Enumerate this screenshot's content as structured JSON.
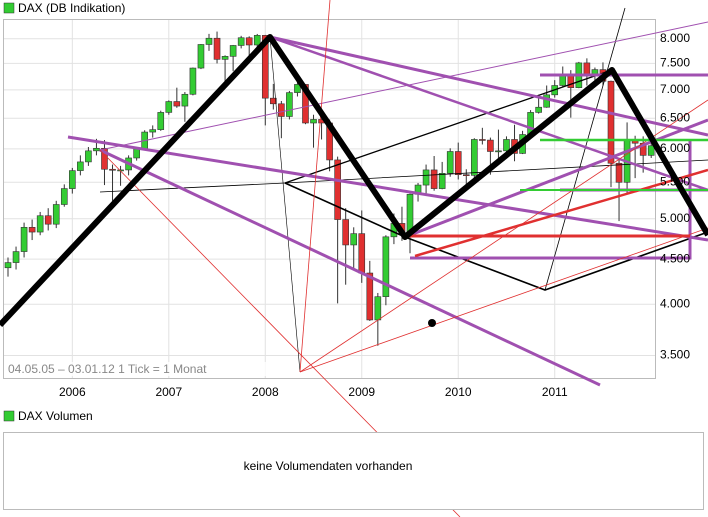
{
  "chart_data": {
    "type": "candlestick",
    "title": "DAX (DB Indikation)",
    "footnote": "04.05.05 – 03.01.12   1 Tick = 1 Monat",
    "categories": [
      null,
      null,
      null,
      null,
      null,
      null,
      null,
      null,
      "2006",
      null,
      null,
      null,
      null,
      null,
      null,
      null,
      null,
      null,
      null,
      null,
      "2007",
      null,
      null,
      null,
      null,
      null,
      null,
      null,
      null,
      null,
      null,
      null,
      "2008",
      null,
      null,
      null,
      null,
      null,
      null,
      null,
      null,
      null,
      null,
      null,
      "2009",
      null,
      null,
      null,
      null,
      null,
      null,
      null,
      null,
      null,
      null,
      null,
      "2010",
      null,
      null,
      null,
      null,
      null,
      null,
      null,
      null,
      null,
      null,
      null,
      "2011",
      null,
      null,
      null,
      null,
      null,
      null,
      null,
      null,
      null,
      null,
      null,
      null
    ],
    "open": [
      4400,
      4460,
      4590,
      4890,
      4830,
      5040,
      4930,
      5190,
      5410,
      5670,
      5800,
      5970,
      6010,
      5690,
      5680,
      5680,
      5860,
      6000,
      6270,
      6310,
      6600,
      6790,
      6710,
      6920,
      7410,
      7880,
      8010,
      7580,
      7640,
      7860,
      8020,
      7870,
      8070,
      6850,
      6750,
      6530,
      6950,
      7100,
      6420,
      6480,
      6420,
      5830,
      4990,
      4670,
      4810,
      4340,
      3840,
      4080,
      4770,
      4940,
      4810,
      5330,
      5460,
      5680,
      5410,
      5630,
      5960,
      5610,
      5600,
      6150,
      6140,
      5960,
      5970,
      6150,
      5930,
      6230,
      6600,
      6690,
      6910,
      7080,
      7270,
      7040,
      7510,
      7290,
      7380,
      7160,
      5780,
      5500,
      6140,
      6090,
      5900
    ],
    "high": [
      4520,
      4650,
      4950,
      4990,
      5090,
      5140,
      5240,
      5470,
      5710,
      5900,
      6030,
      6160,
      6140,
      5760,
      5740,
      5900,
      6030,
      6300,
      6380,
      6630,
      6810,
      7040,
      6960,
      7420,
      7890,
      8100,
      8150,
      7660,
      7870,
      8060,
      8050,
      8100,
      8080,
      7110,
      6800,
      6980,
      7230,
      7100,
      6560,
      6500,
      6480,
      5880,
      5140,
      4890,
      5110,
      4480,
      4120,
      4790,
      5070,
      5160,
      5340,
      5490,
      5760,
      5890,
      5800,
      6010,
      6100,
      5690,
      6170,
      6340,
      6180,
      6310,
      6200,
      6390,
      6290,
      6640,
      6910,
      7080,
      7180,
      7440,
      7370,
      7530,
      7600,
      7420,
      7520,
      7170,
      5850,
      6430,
      6210,
      6200,
      6120
    ],
    "low": [
      4300,
      4380,
      4520,
      4730,
      4790,
      4850,
      4880,
      5160,
      5340,
      5600,
      5740,
      5900,
      5460,
      5240,
      5450,
      5600,
      5820,
      5980,
      6180,
      6290,
      6560,
      6680,
      6440,
      6900,
      7390,
      7750,
      7500,
      7120,
      7350,
      7800,
      7600,
      7780,
      6380,
      6650,
      6170,
      6480,
      6880,
      6400,
      6020,
      6150,
      5660,
      4010,
      4210,
      4380,
      4230,
      3830,
      3590,
      3990,
      4680,
      4720,
      4570,
      5230,
      5310,
      5380,
      5400,
      5580,
      5540,
      5430,
      5560,
      6070,
      5610,
      5800,
      5880,
      5810,
      5920,
      6170,
      6580,
      6680,
      6860,
      7050,
      6510,
      7030,
      7080,
      7080,
      7080,
      5430,
      4970,
      5340,
      5560,
      5640,
      5860
    ],
    "close": [
      4460,
      4590,
      4890,
      4830,
      5040,
      4930,
      5190,
      5410,
      5670,
      5800,
      5970,
      6010,
      5690,
      5680,
      5680,
      5860,
      6000,
      6270,
      6310,
      6600,
      6790,
      6710,
      6920,
      7410,
      7880,
      8010,
      7580,
      7640,
      7860,
      8020,
      7870,
      8070,
      6850,
      6750,
      6530,
      6950,
      7100,
      6420,
      6480,
      6420,
      5830,
      4990,
      4670,
      4810,
      4340,
      3840,
      4080,
      4770,
      4940,
      4810,
      5330,
      5460,
      5680,
      5410,
      5630,
      5960,
      5610,
      5600,
      6150,
      6140,
      5960,
      5970,
      6150,
      5930,
      6230,
      6600,
      6690,
      6910,
      7080,
      7270,
      7040,
      7510,
      7290,
      7380,
      7160,
      5780,
      5500,
      6140,
      6090,
      5900,
      6050
    ],
    "up_color": "#33cc33",
    "down_color": "#e03030",
    "log_scale": true,
    "grid": true,
    "ylim": [
      3300,
      8400
    ],
    "yticks": [
      {
        "value": 3500,
        "label": "3.500"
      },
      {
        "value": 4000,
        "label": "4.000"
      },
      {
        "value": 4500,
        "label": "4.500"
      },
      {
        "value": 5000,
        "label": "5.000"
      },
      {
        "value": 5500,
        "label": "5.500"
      },
      {
        "value": 6000,
        "label": "6.000"
      },
      {
        "value": 6500,
        "label": "6.500"
      },
      {
        "value": 7000,
        "label": "7.000"
      },
      {
        "value": 7500,
        "label": "7.500"
      },
      {
        "value": 8000,
        "label": "8.000"
      }
    ],
    "volume_title": "DAX Volumen",
    "volume_note": "keine Volumendaten vorhanden"
  }
}
